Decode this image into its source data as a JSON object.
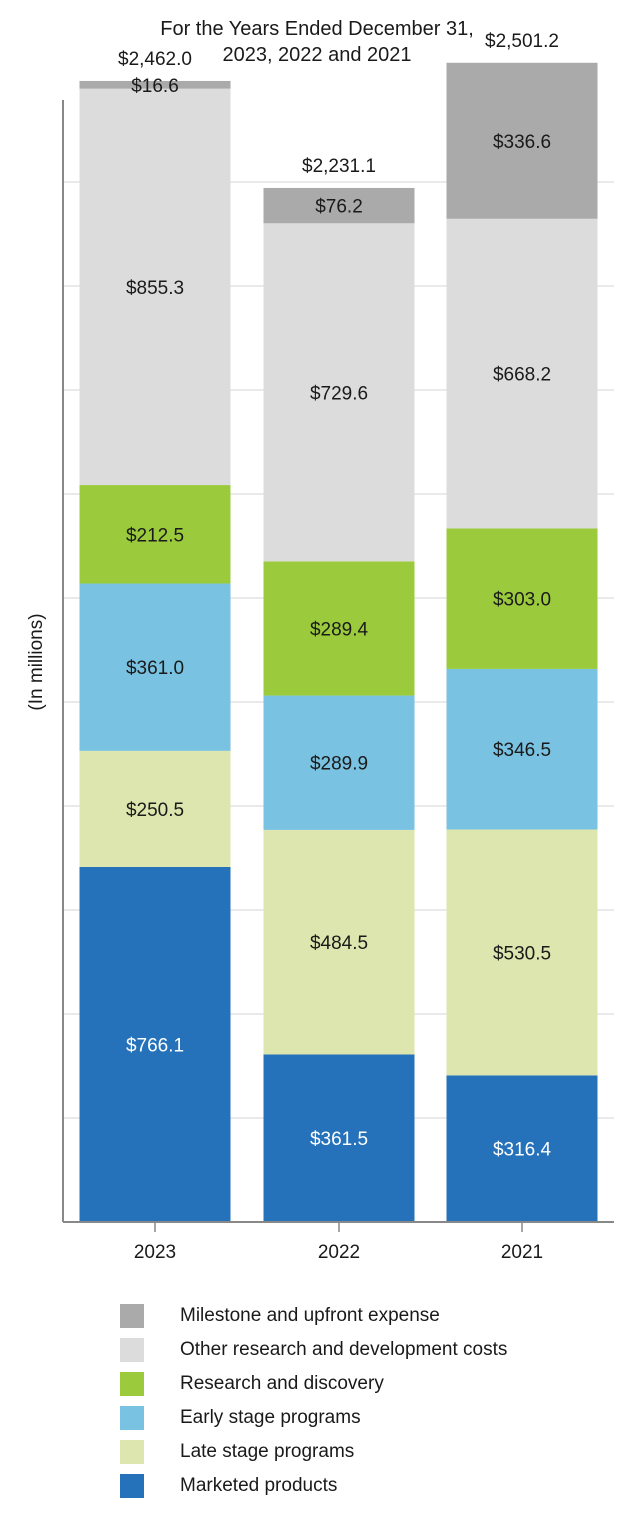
{
  "chart_data": {
    "type": "bar",
    "stacked": true,
    "title": [
      "For the Years Ended December 31,",
      "2023, 2022 and 2021"
    ],
    "ylabel": "(In millions)",
    "categories": [
      "2023",
      "2022",
      "2021"
    ],
    "totals": [
      2462.0,
      2231.1,
      2501.2
    ],
    "total_labels": [
      "$2,462.0",
      "$2,231.1",
      "$2,501.2"
    ],
    "ylim": [
      0,
      2600
    ],
    "grid": true,
    "series": [
      {
        "name": "Marketed products",
        "color": "#2672BA",
        "label_color": "#ffffff",
        "values": [
          766.1,
          361.5,
          316.4
        ],
        "labels": [
          "$766.1",
          "$361.5",
          "$316.4"
        ]
      },
      {
        "name": "Late stage programs",
        "color": "#DDE6AE",
        "label_color": "#1a1a1a",
        "values": [
          250.5,
          484.5,
          530.5
        ],
        "labels": [
          "$250.5",
          "$484.5",
          "$530.5"
        ]
      },
      {
        "name": "Early stage programs",
        "color": "#7AC2E1",
        "label_color": "#1a1a1a",
        "values": [
          361.0,
          289.9,
          346.5
        ],
        "labels": [
          "$361.0",
          "$289.9",
          "$346.5"
        ]
      },
      {
        "name": "Research and discovery",
        "color": "#9BCB3C",
        "label_color": "#1a1a1a",
        "values": [
          212.5,
          289.4,
          303.0
        ],
        "labels": [
          "$212.5",
          "$289.4",
          "$303.0"
        ]
      },
      {
        "name": "Other research and development costs",
        "color": "#DCDCDC",
        "label_color": "#1a1a1a",
        "values": [
          855.3,
          729.6,
          668.2
        ],
        "labels": [
          "$855.3",
          "$729.6",
          "$668.2"
        ]
      },
      {
        "name": "Milestone and upfront expense",
        "color": "#AAAAAA",
        "label_color": "#1a1a1a",
        "values": [
          16.6,
          76.2,
          336.6
        ],
        "labels": [
          "$16.6",
          "$76.2",
          "$336.6"
        ]
      }
    ],
    "legend_position": "bottom",
    "legend_order": [
      5,
      4,
      3,
      2,
      1,
      0
    ]
  }
}
